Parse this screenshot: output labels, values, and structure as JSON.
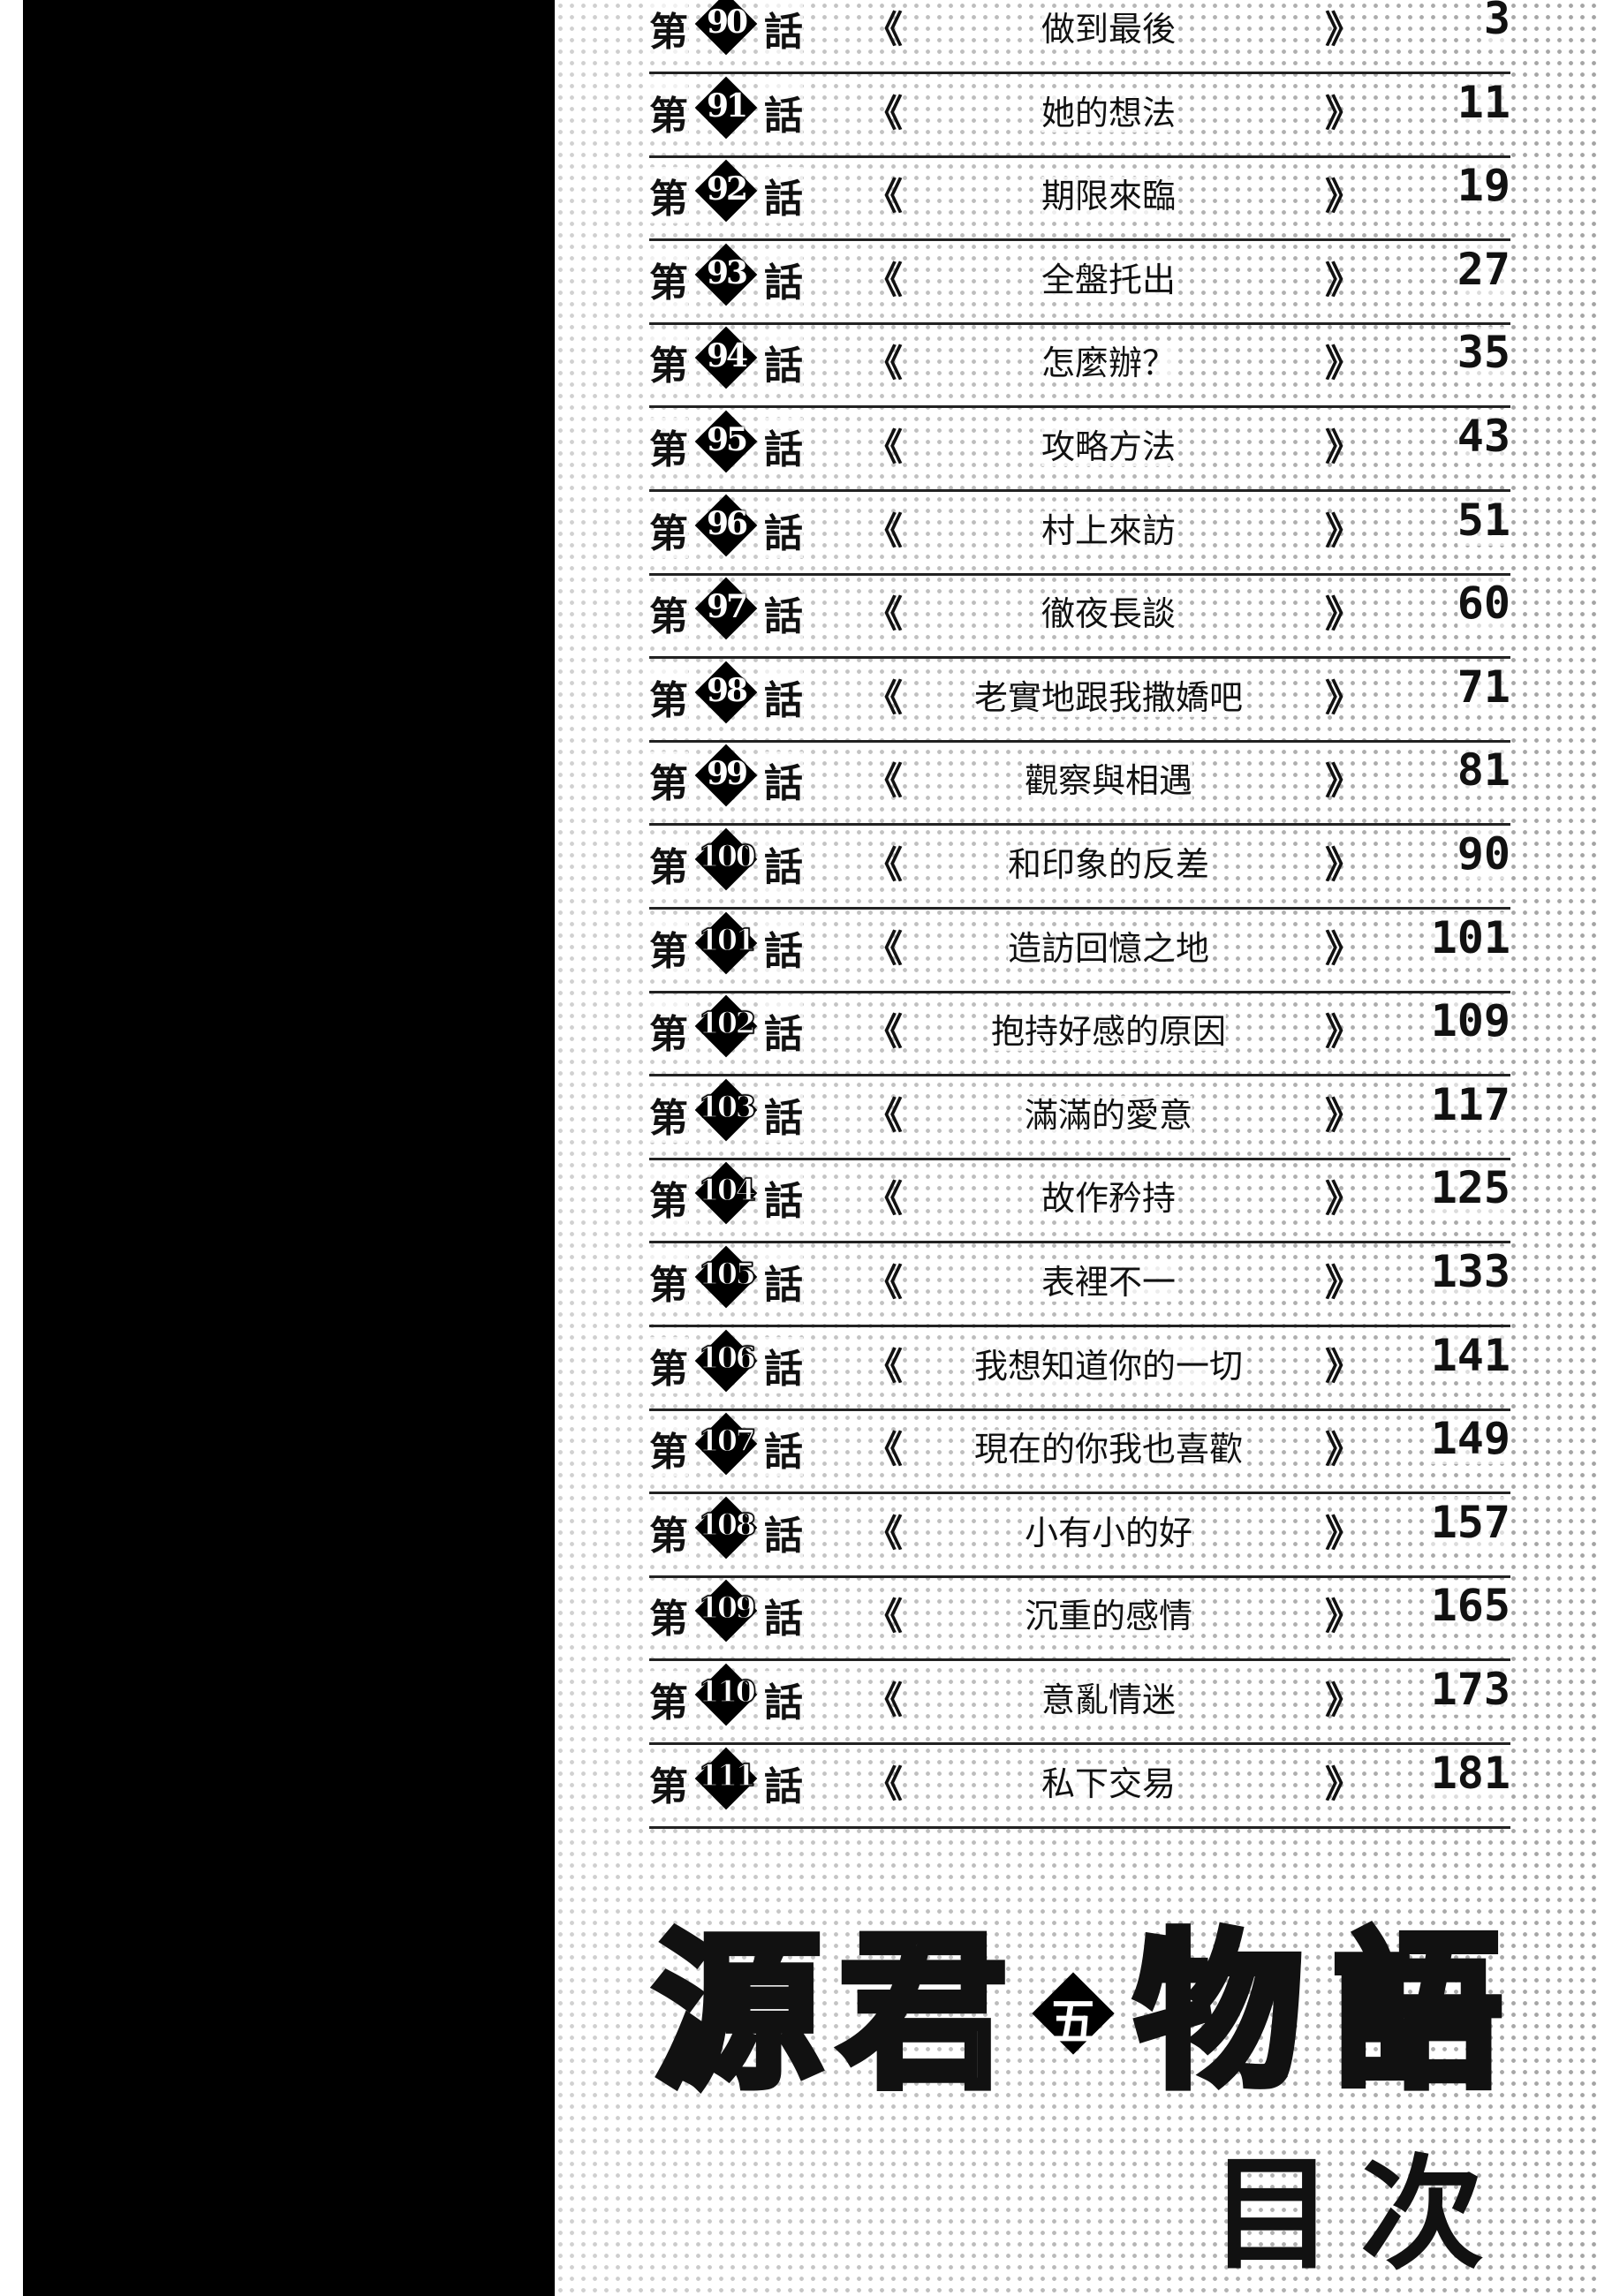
{
  "toc": {
    "prefix": "第",
    "suffix": "話",
    "open_bracket": "《",
    "close_bracket": "》",
    "entries": [
      {
        "num": "90",
        "title": "做到最後",
        "page": "3"
      },
      {
        "num": "91",
        "title": "她的想法",
        "page": "11"
      },
      {
        "num": "92",
        "title": "期限來臨",
        "page": "19"
      },
      {
        "num": "93",
        "title": "全盤托出",
        "page": "27"
      },
      {
        "num": "94",
        "title": "怎麼辦？",
        "page": "35"
      },
      {
        "num": "95",
        "title": "攻略方法",
        "page": "43"
      },
      {
        "num": "96",
        "title": "村上來訪",
        "page": "51"
      },
      {
        "num": "97",
        "title": "徹夜長談",
        "page": "60"
      },
      {
        "num": "98",
        "title": "老實地跟我撒嬌吧",
        "page": "71"
      },
      {
        "num": "99",
        "title": "觀察與相遇",
        "page": "81"
      },
      {
        "num": "100",
        "title": "和印象的反差",
        "page": "90"
      },
      {
        "num": "101",
        "title": "造訪回憶之地",
        "page": "101"
      },
      {
        "num": "102",
        "title": "抱持好感的原因",
        "page": "109"
      },
      {
        "num": "103",
        "title": "滿滿的愛意",
        "page": "117"
      },
      {
        "num": "104",
        "title": "故作矜持",
        "page": "125"
      },
      {
        "num": "105",
        "title": "表裡不一",
        "page": "133"
      },
      {
        "num": "106",
        "title": "我想知道你的一切",
        "page": "141"
      },
      {
        "num": "107",
        "title": "現在的你我也喜歡",
        "page": "149"
      },
      {
        "num": "108",
        "title": "小有小的好",
        "page": "157"
      },
      {
        "num": "109",
        "title": "沉重的感情",
        "page": "165"
      },
      {
        "num": "110",
        "title": "意亂情迷",
        "page": "173"
      },
      {
        "num": "111",
        "title": "私下交易",
        "page": "181"
      }
    ]
  },
  "logo": {
    "chars": [
      "源",
      "君",
      "物",
      "語"
    ],
    "volume": "五"
  },
  "heading": "目次"
}
